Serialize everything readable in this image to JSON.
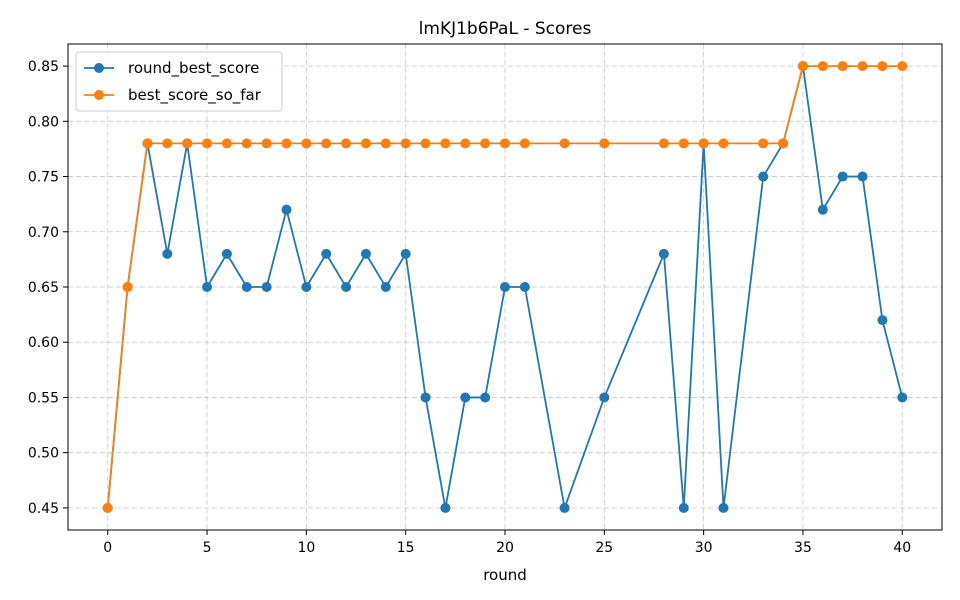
{
  "chart_data": {
    "type": "line",
    "title": "lmKJ1b6PaL - Scores",
    "xlabel": "round",
    "ylabel": "",
    "xlim": [
      -2,
      42
    ],
    "ylim": [
      0.43,
      0.87
    ],
    "xticks": [
      0,
      5,
      10,
      15,
      20,
      25,
      30,
      35,
      40
    ],
    "yticks": [
      0.45,
      0.5,
      0.55,
      0.6,
      0.65,
      0.7,
      0.75,
      0.8,
      0.85
    ],
    "grid": true,
    "legend_position": "top-left",
    "series": [
      {
        "name": "round_best_score",
        "color": "#1f77b4",
        "x": [
          0,
          1,
          2,
          3,
          4,
          5,
          6,
          7,
          8,
          9,
          10,
          11,
          12,
          13,
          14,
          15,
          16,
          17,
          18,
          19,
          20,
          21,
          23,
          25,
          28,
          29,
          30,
          31,
          33,
          34,
          35,
          36,
          37,
          38,
          39,
          40
        ],
        "y": [
          0.45,
          0.65,
          0.78,
          0.68,
          0.78,
          0.65,
          0.68,
          0.65,
          0.65,
          0.72,
          0.65,
          0.68,
          0.65,
          0.68,
          0.65,
          0.68,
          0.55,
          0.45,
          0.55,
          0.55,
          0.65,
          0.65,
          0.45,
          0.55,
          0.68,
          0.45,
          0.78,
          0.45,
          0.75,
          0.78,
          0.85,
          0.72,
          0.75,
          0.75,
          0.62,
          0.55
        ]
      },
      {
        "name": "best_score_so_far",
        "color": "#ff7f0e",
        "x": [
          0,
          1,
          2,
          3,
          4,
          5,
          6,
          7,
          8,
          9,
          10,
          11,
          12,
          13,
          14,
          15,
          16,
          17,
          18,
          19,
          20,
          21,
          23,
          25,
          28,
          29,
          30,
          31,
          33,
          34,
          35,
          36,
          37,
          38,
          39,
          40
        ],
        "y": [
          0.45,
          0.65,
          0.78,
          0.78,
          0.78,
          0.78,
          0.78,
          0.78,
          0.78,
          0.78,
          0.78,
          0.78,
          0.78,
          0.78,
          0.78,
          0.78,
          0.78,
          0.78,
          0.78,
          0.78,
          0.78,
          0.78,
          0.78,
          0.78,
          0.78,
          0.78,
          0.78,
          0.78,
          0.78,
          0.78,
          0.85,
          0.85,
          0.85,
          0.85,
          0.85,
          0.85
        ]
      }
    ]
  }
}
